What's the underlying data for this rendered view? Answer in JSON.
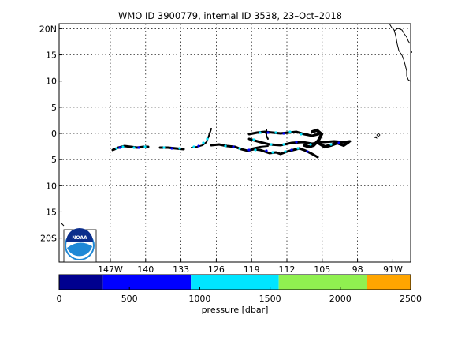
{
  "title": "WMO ID 3900779, internal ID 3538, 23–Oct–2018",
  "map": {
    "lat_ticks": [
      {
        "value": 20,
        "label": "20N"
      },
      {
        "value": 15,
        "label": "15"
      },
      {
        "value": 10,
        "label": "10"
      },
      {
        "value": 5,
        "label": "5"
      },
      {
        "value": 0,
        "label": "0"
      },
      {
        "value": -5,
        "label": "5"
      },
      {
        "value": -10,
        "label": "10"
      },
      {
        "value": -15,
        "label": "15"
      },
      {
        "value": -20,
        "label": "20S"
      }
    ],
    "lon_ticks": [
      {
        "value": -147,
        "label": "147W"
      },
      {
        "value": -140,
        "label": "140"
      },
      {
        "value": -133,
        "label": "133"
      },
      {
        "value": -126,
        "label": "126"
      },
      {
        "value": -119,
        "label": "119"
      },
      {
        "value": -112,
        "label": "112"
      },
      {
        "value": -105,
        "label": "105"
      },
      {
        "value": -98,
        "label": "98"
      },
      {
        "value": -91,
        "label": "91W"
      }
    ],
    "grid": true,
    "logo_text": "NOAA"
  },
  "colorbar": {
    "ticks": [
      "0",
      "500",
      "1000",
      "1500",
      "2000",
      "2500"
    ],
    "label": "pressure [dbar]",
    "range": [
      0,
      2500
    ],
    "segments": [
      {
        "from": 0,
        "to": 312,
        "color": "#00008F"
      },
      {
        "from": 312,
        "to": 937,
        "color": "#0000FF"
      },
      {
        "from": 937,
        "to": 1562,
        "color": "#00E5FF"
      },
      {
        "from": 1562,
        "to": 2187,
        "color": "#90F050"
      },
      {
        "from": 2187,
        "to": 2500,
        "color": "#FFA500"
      }
    ]
  }
}
